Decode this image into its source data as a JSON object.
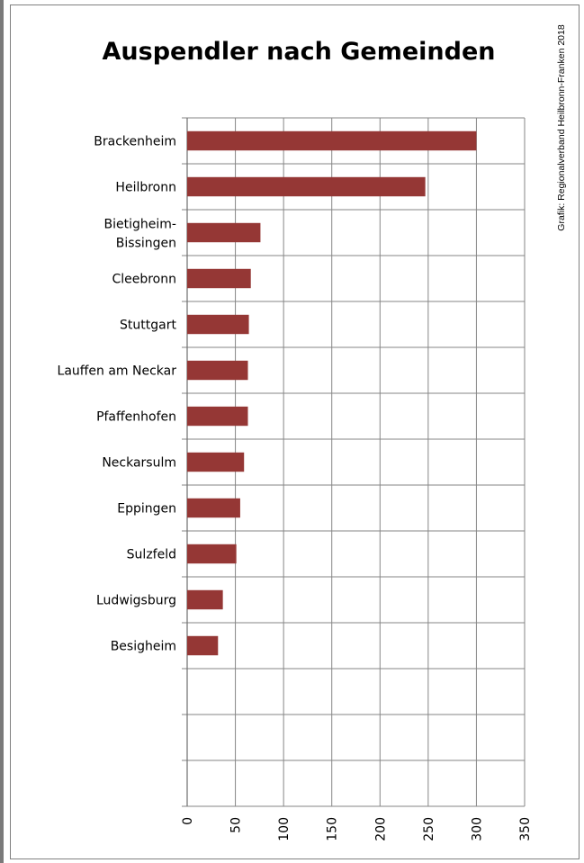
{
  "chart_data": {
    "type": "bar",
    "orientation": "horizontal",
    "title": "Auspendler nach Gemeinden",
    "credit": "Grafik: Regionalverband Heilbronn-Franken 2018",
    "categories": [
      "Brackenheim",
      "Heilbronn",
      "Bietigheim-Bissingen",
      "Cleebronn",
      "Stuttgart",
      "Lauffen am Neckar",
      "Pfaffenhofen",
      "Neckarsulm",
      "Eppingen",
      "Sulzfeld",
      "Ludwigsburg",
      "Besigheim",
      "",
      "",
      ""
    ],
    "values": [
      300,
      247,
      76,
      66,
      64,
      63,
      63,
      59,
      55,
      51,
      37,
      32,
      null,
      null,
      null
    ],
    "xlim": [
      0,
      350
    ],
    "xticks": [
      "0",
      "50",
      "100",
      "150",
      "200",
      "250",
      "300",
      "350"
    ],
    "grid": true,
    "bar_color": "#953735"
  }
}
